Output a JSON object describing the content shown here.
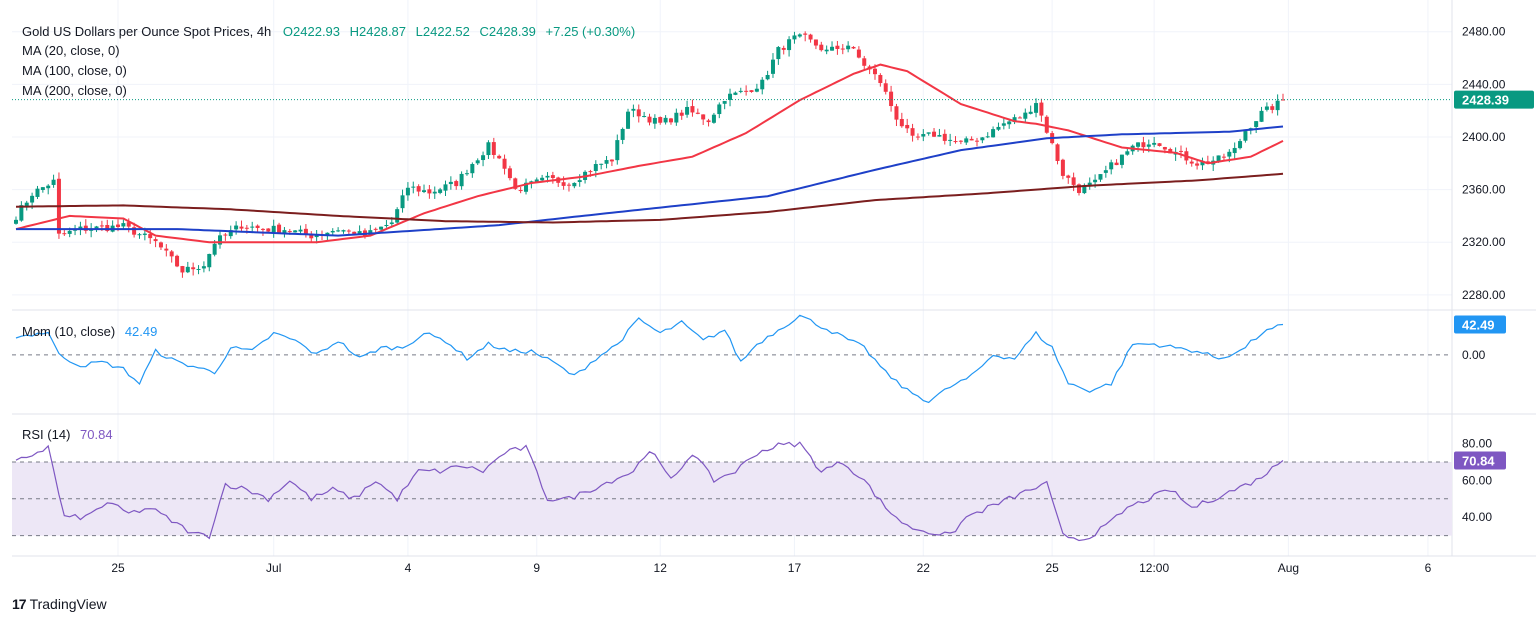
{
  "header": {
    "symbol": "Gold US Dollars per Ounce Spot Prices, 4h",
    "open": "O2422.93",
    "high": "H2428.87",
    "low": "L2422.52",
    "close": "C2428.39",
    "change": "+7.25 (+0.30%)",
    "ma20_label": "MA (20, close, 0)",
    "ma100_label": "MA (100, close, 0)",
    "ma200_label": "MA (200, close, 0)",
    "mom_label": "Mom (10, close)",
    "mom_value": "42.49",
    "rsi_label": "RSI (14)",
    "rsi_value": "70.84"
  },
  "branding": {
    "name": "TradingView"
  },
  "colors": {
    "up": "#089981",
    "down": "#f23645",
    "ma20": "#f23645",
    "ma100": "#1e40c8",
    "ma200": "#7b1e1e",
    "mom": "#2196f3",
    "rsi": "#7e57c2",
    "rsi_band": "#ede7f6"
  },
  "chart_data": [
    {
      "type": "candlestick",
      "title": "Gold US Dollars per Ounce Spot Prices, 4h",
      "ylim": [
        2270,
        2495
      ],
      "price_ticks": [
        "2480.00",
        "2440.00",
        "2400.00",
        "2360.00",
        "2320.00",
        "2280.00"
      ],
      "last_price_label": "2428.39",
      "x_ticks": [
        "25",
        "Jul",
        "4",
        "9",
        "12",
        "17",
        "22",
        "25",
        "12:00",
        "Aug",
        "6"
      ],
      "close_anchors": [
        [
          0,
          2340
        ],
        [
          3,
          2357
        ],
        [
          6,
          2364
        ],
        [
          7,
          2366
        ],
        [
          8,
          2325
        ],
        [
          12,
          2330
        ],
        [
          20,
          2332
        ],
        [
          26,
          2320
        ],
        [
          31,
          2298
        ],
        [
          35,
          2303
        ],
        [
          37,
          2320
        ],
        [
          42,
          2333
        ],
        [
          46,
          2330
        ],
        [
          50,
          2330
        ],
        [
          55,
          2325
        ],
        [
          60,
          2330
        ],
        [
          65,
          2325
        ],
        [
          70,
          2335
        ],
        [
          73,
          2362
        ],
        [
          77,
          2358
        ],
        [
          82,
          2365
        ],
        [
          85,
          2380
        ],
        [
          88,
          2393
        ],
        [
          91,
          2378
        ],
        [
          93,
          2360
        ],
        [
          99,
          2368
        ],
        [
          103,
          2365
        ],
        [
          108,
          2378
        ],
        [
          111,
          2383
        ],
        [
          114,
          2420
        ],
        [
          116,
          2418
        ],
        [
          120,
          2410
        ],
        [
          125,
          2420
        ],
        [
          129,
          2413
        ],
        [
          132,
          2430
        ],
        [
          136,
          2435
        ],
        [
          139,
          2441
        ],
        [
          142,
          2466
        ],
        [
          145,
          2475
        ],
        [
          147,
          2475
        ],
        [
          151,
          2465
        ],
        [
          155,
          2470
        ],
        [
          158,
          2455
        ],
        [
          161,
          2442
        ],
        [
          164,
          2415
        ],
        [
          167,
          2398
        ],
        [
          171,
          2402
        ],
        [
          176,
          2395
        ],
        [
          180,
          2400
        ],
        [
          184,
          2410
        ],
        [
          188,
          2417
        ],
        [
          190,
          2427
        ],
        [
          192,
          2405
        ],
        [
          195,
          2372
        ],
        [
          198,
          2360
        ],
        [
          201,
          2365
        ],
        [
          204,
          2378
        ],
        [
          208,
          2392
        ],
        [
          212,
          2398
        ],
        [
          216,
          2388
        ],
        [
          220,
          2380
        ],
        [
          224,
          2383
        ],
        [
          227,
          2390
        ],
        [
          229,
          2405
        ],
        [
          232,
          2418
        ],
        [
          235,
          2425
        ],
        [
          236,
          2428.39
        ]
      ],
      "series": [
        {
          "name": "MA (20, close, 0)",
          "anchors": [
            [
              0,
              2330
            ],
            [
              10,
              2340
            ],
            [
              20,
              2338
            ],
            [
              26,
              2325
            ],
            [
              36,
              2320
            ],
            [
              46,
              2320
            ],
            [
              56,
              2320
            ],
            [
              66,
              2325
            ],
            [
              76,
              2342
            ],
            [
              86,
              2355
            ],
            [
              96,
              2365
            ],
            [
              106,
              2370
            ],
            [
              116,
              2378
            ],
            [
              126,
              2385
            ],
            [
              136,
              2403
            ],
            [
              146,
              2428
            ],
            [
              156,
              2448
            ],
            [
              161,
              2455
            ],
            [
              166,
              2450
            ],
            [
              176,
              2425
            ],
            [
              186,
              2412
            ],
            [
              190,
              2410
            ],
            [
              196,
              2405
            ],
            [
              206,
              2392
            ],
            [
              216,
              2388
            ],
            [
              222,
              2380
            ],
            [
              230,
              2385
            ],
            [
              236,
              2397
            ]
          ]
        },
        {
          "name": "MA (100, close, 0)",
          "anchors": [
            [
              0,
              2330
            ],
            [
              30,
              2330
            ],
            [
              60,
              2325
            ],
            [
              90,
              2333
            ],
            [
              110,
              2342
            ],
            [
              140,
              2355
            ],
            [
              160,
              2375
            ],
            [
              176,
              2390
            ],
            [
              192,
              2399
            ],
            [
              206,
              2402
            ],
            [
              226,
              2404
            ],
            [
              236,
              2408
            ]
          ]
        },
        {
          "name": "MA (200, close, 0)",
          "anchors": [
            [
              0,
              2347
            ],
            [
              20,
              2348
            ],
            [
              40,
              2345
            ],
            [
              60,
              2340
            ],
            [
              80,
              2336
            ],
            [
              100,
              2335
            ],
            [
              120,
              2337
            ],
            [
              140,
              2343
            ],
            [
              160,
              2352
            ],
            [
              180,
              2357
            ],
            [
              200,
              2363
            ],
            [
              220,
              2367
            ],
            [
              236,
              2372
            ]
          ]
        }
      ]
    },
    {
      "type": "line",
      "title": "Mom (10, close)",
      "ylim": [
        -80,
        60
      ],
      "ticks": [
        "42.49",
        "0.00"
      ],
      "zero_line": 0,
      "series": [
        {
          "name": "Mom (10, close)",
          "anchors": [
            [
              0,
              25
            ],
            [
              6,
              32
            ],
            [
              8,
              0
            ],
            [
              12,
              -15
            ],
            [
              16,
              -10
            ],
            [
              20,
              -20
            ],
            [
              23,
              -40
            ],
            [
              26,
              5
            ],
            [
              30,
              -10
            ],
            [
              34,
              -18
            ],
            [
              37,
              -25
            ],
            [
              40,
              10
            ],
            [
              44,
              5
            ],
            [
              48,
              30
            ],
            [
              52,
              20
            ],
            [
              56,
              0
            ],
            [
              60,
              20
            ],
            [
              64,
              -5
            ],
            [
              68,
              10
            ],
            [
              72,
              10
            ],
            [
              76,
              30
            ],
            [
              80,
              20
            ],
            [
              84,
              -5
            ],
            [
              88,
              15
            ],
            [
              92,
              5
            ],
            [
              96,
              5
            ],
            [
              100,
              -10
            ],
            [
              104,
              -30
            ],
            [
              108,
              -5
            ],
            [
              112,
              15
            ],
            [
              116,
              50
            ],
            [
              120,
              30
            ],
            [
              124,
              45
            ],
            [
              128,
              20
            ],
            [
              132,
              35
            ],
            [
              135,
              -10
            ],
            [
              138,
              15
            ],
            [
              142,
              35
            ],
            [
              146,
              55
            ],
            [
              150,
              40
            ],
            [
              154,
              25
            ],
            [
              158,
              10
            ],
            [
              162,
              -25
            ],
            [
              166,
              -50
            ],
            [
              170,
              -65
            ],
            [
              174,
              -45
            ],
            [
              178,
              -30
            ],
            [
              182,
              0
            ],
            [
              186,
              -5
            ],
            [
              190,
              30
            ],
            [
              193,
              10
            ],
            [
              196,
              -40
            ],
            [
              200,
              -50
            ],
            [
              204,
              -40
            ],
            [
              208,
              15
            ],
            [
              212,
              15
            ],
            [
              216,
              10
            ],
            [
              220,
              5
            ],
            [
              224,
              -5
            ],
            [
              228,
              5
            ],
            [
              232,
              30
            ],
            [
              236,
              42.49
            ]
          ]
        }
      ]
    },
    {
      "type": "line",
      "title": "RSI (14)",
      "ylim": [
        20,
        95
      ],
      "ticks": [
        "80.00",
        "70.84",
        "60.00",
        "40.00"
      ],
      "levels": [
        70,
        50,
        30
      ],
      "series": [
        {
          "name": "RSI (14)",
          "anchors": [
            [
              0,
              70
            ],
            [
              6,
              78
            ],
            [
              9,
              40
            ],
            [
              13,
              40
            ],
            [
              17,
              48
            ],
            [
              21,
              42
            ],
            [
              25,
              45
            ],
            [
              29,
              38
            ],
            [
              33,
              31
            ],
            [
              36,
              30
            ],
            [
              39,
              58
            ],
            [
              43,
              55
            ],
            [
              47,
              50
            ],
            [
              51,
              60
            ],
            [
              55,
              50
            ],
            [
              59,
              55
            ],
            [
              63,
              50
            ],
            [
              67,
              60
            ],
            [
              71,
              50
            ],
            [
              75,
              65
            ],
            [
              79,
              65
            ],
            [
              83,
              68
            ],
            [
              87,
              65
            ],
            [
              91,
              75
            ],
            [
              95,
              78
            ],
            [
              99,
              50
            ],
            [
              103,
              50
            ],
            [
              107,
              55
            ],
            [
              111,
              60
            ],
            [
              115,
              65
            ],
            [
              118,
              77
            ],
            [
              122,
              60
            ],
            [
              126,
              75
            ],
            [
              130,
              60
            ],
            [
              134,
              65
            ],
            [
              138,
              75
            ],
            [
              142,
              79
            ],
            [
              146,
              80
            ],
            [
              150,
              65
            ],
            [
              154,
              70
            ],
            [
              158,
              60
            ],
            [
              162,
              45
            ],
            [
              166,
              35
            ],
            [
              170,
              32
            ],
            [
              174,
              30
            ],
            [
              177,
              40
            ],
            [
              181,
              45
            ],
            [
              185,
              50
            ],
            [
              189,
              55
            ],
            [
              192,
              58
            ],
            [
              195,
              30
            ],
            [
              199,
              28
            ],
            [
              203,
              35
            ],
            [
              207,
              45
            ],
            [
              211,
              50
            ],
            [
              215,
              55
            ],
            [
              219,
              45
            ],
            [
              223,
              50
            ],
            [
              227,
              55
            ],
            [
              231,
              60
            ],
            [
              236,
              70.84
            ]
          ]
        }
      ]
    }
  ]
}
